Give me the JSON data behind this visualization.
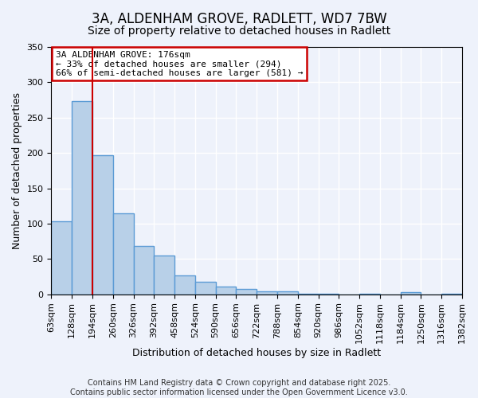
{
  "title": "3A, ALDENHAM GROVE, RADLETT, WD7 7BW",
  "subtitle": "Size of property relative to detached houses in Radlett",
  "bar_values": [
    103,
    273,
    197,
    115,
    68,
    55,
    27,
    18,
    11,
    8,
    4,
    4,
    1,
    1,
    0,
    1,
    0,
    3,
    0,
    1
  ],
  "bin_labels": [
    "63sqm",
    "128sqm",
    "194sqm",
    "260sqm",
    "326sqm",
    "392sqm",
    "458sqm",
    "524sqm",
    "590sqm",
    "656sqm",
    "722sqm",
    "788sqm",
    "854sqm",
    "920sqm",
    "986sqm",
    "1052sqm",
    "1118sqm",
    "1184sqm",
    "1250sqm",
    "1316sqm",
    "1382sqm"
  ],
  "bar_color": "#b8d0e8",
  "bar_edge_color": "#5b9bd5",
  "bar_edge_width": 1.0,
  "vline_color": "#cc0000",
  "vline_pos": 2.0,
  "xlabel": "Distribution of detached houses by size in Radlett",
  "ylabel": "Number of detached properties",
  "ylim": [
    0,
    350
  ],
  "yticks": [
    0,
    50,
    100,
    150,
    200,
    250,
    300,
    350
  ],
  "annotation_title": "3A ALDENHAM GROVE: 176sqm",
  "annotation_line1": "← 33% of detached houses are smaller (294)",
  "annotation_line2": "66% of semi-detached houses are larger (581) →",
  "annotation_box_color": "#ffffff",
  "annotation_box_edge": "#cc0000",
  "footer_line1": "Contains HM Land Registry data © Crown copyright and database right 2025.",
  "footer_line2": "Contains public sector information licensed under the Open Government Licence v3.0.",
  "background_color": "#eef2fb",
  "grid_color": "#ffffff",
  "title_fontsize": 12,
  "subtitle_fontsize": 10,
  "axis_label_fontsize": 9,
  "tick_fontsize": 8,
  "footer_fontsize": 7,
  "annotation_fontsize": 8
}
